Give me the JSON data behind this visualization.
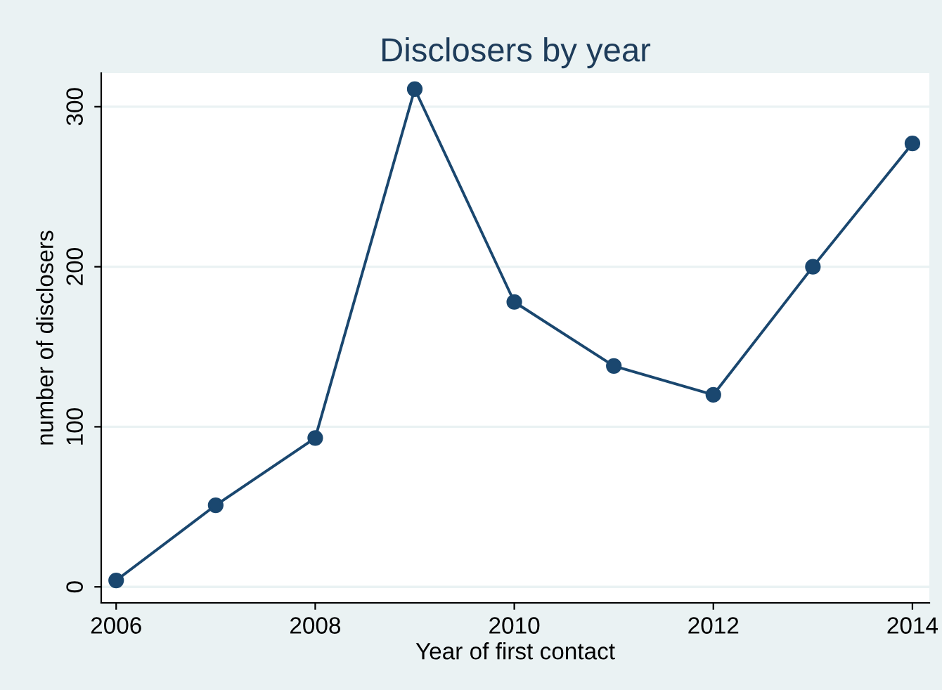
{
  "chart_data": {
    "type": "line",
    "title": "Disclosers by year",
    "xlabel": "Year of first contact",
    "ylabel": "number of disclosers",
    "x": [
      2006,
      2007,
      2008,
      2009,
      2010,
      2011,
      2012,
      2013,
      2014
    ],
    "series": [
      {
        "color": "#1a476f",
        "values": [
          4,
          51,
          93,
          311,
          178,
          138,
          120,
          200,
          277
        ]
      }
    ],
    "xlim": [
      2005.85,
      2014.17
    ],
    "xticks": [
      2006,
      2008,
      2010,
      2012,
      2014
    ],
    "ylim": [
      -10,
      321
    ],
    "yticks": [
      0,
      100,
      200,
      300
    ],
    "grid": "y",
    "marker": "circle",
    "line_style": "solid",
    "legend": false
  }
}
